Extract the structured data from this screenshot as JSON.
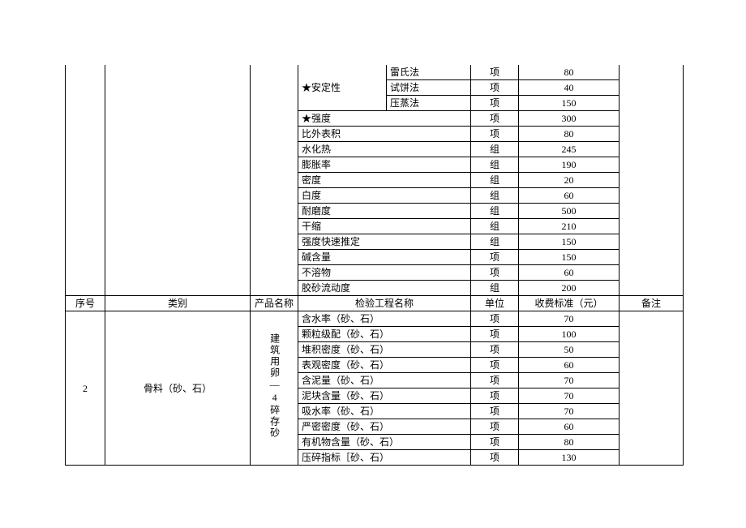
{
  "section1": {
    "stability": {
      "label": "★安定性",
      "rows": [
        {
          "name": "雷氏法",
          "unit": "项",
          "fee": "80"
        },
        {
          "name": "试饼法",
          "unit": "项",
          "fee": "40"
        },
        {
          "name": "压蒸法",
          "unit": "项",
          "fee": "150"
        }
      ]
    },
    "rows": [
      {
        "name": "★强度",
        "unit": "项",
        "fee": "300"
      },
      {
        "name": "比外表积",
        "unit": "项",
        "fee": "80"
      },
      {
        "name": "水化热",
        "unit": "组",
        "fee": "245"
      },
      {
        "name": "膨胀率",
        "unit": "组",
        "fee": "190"
      },
      {
        "name": "密度",
        "unit": "组",
        "fee": "20"
      },
      {
        "name": "白度",
        "unit": "组",
        "fee": "60"
      },
      {
        "name": "耐磨度",
        "unit": "组",
        "fee": "500"
      },
      {
        "name": "干缩",
        "unit": "组",
        "fee": "210"
      },
      {
        "name": "强度快速推定",
        "unit": "组",
        "fee": "150"
      },
      {
        "name": "碱含量",
        "unit": "项",
        "fee": "150"
      },
      {
        "name": "不溶物",
        "unit": "项",
        "fee": "60"
      },
      {
        "name": "胶砂流动度",
        "unit": "组",
        "fee": "200"
      }
    ]
  },
  "header": {
    "seq": "序号",
    "cat": "类别",
    "prod": "产品名称",
    "name": "检验工程名称",
    "unit": "单位",
    "fee": "收费标准（元）",
    "note": "备注"
  },
  "section2": {
    "seq": "2",
    "category": "骨料（砂、石）",
    "product": "建筑用卵—4碎存砂",
    "rows": [
      {
        "name": "含水率（砂、石）",
        "unit": "项",
        "fee": "70"
      },
      {
        "name": "颗粒级配（砂、石）",
        "unit": "项",
        "fee": "100"
      },
      {
        "name": "堆积密度（砂、石）",
        "unit": "项",
        "fee": "50"
      },
      {
        "name": "表观密度（砂、石）",
        "unit": "项",
        "fee": "60"
      },
      {
        "name": "含泥量（砂、石）",
        "unit": "项",
        "fee": "70"
      },
      {
        "name": "泥块含量（砂、石）",
        "unit": "项",
        "fee": "70"
      },
      {
        "name": "吸水率（砂、石）",
        "unit": "项",
        "fee": "70"
      },
      {
        "name": "严密密度（砂、石）",
        "unit": "项",
        "fee": "60"
      },
      {
        "name": "有机物含量（砂、石）",
        "unit": "项",
        "fee": "80"
      },
      {
        "name": "压碎指标［砂、石）",
        "unit": "项",
        "fee": "130"
      }
    ]
  }
}
